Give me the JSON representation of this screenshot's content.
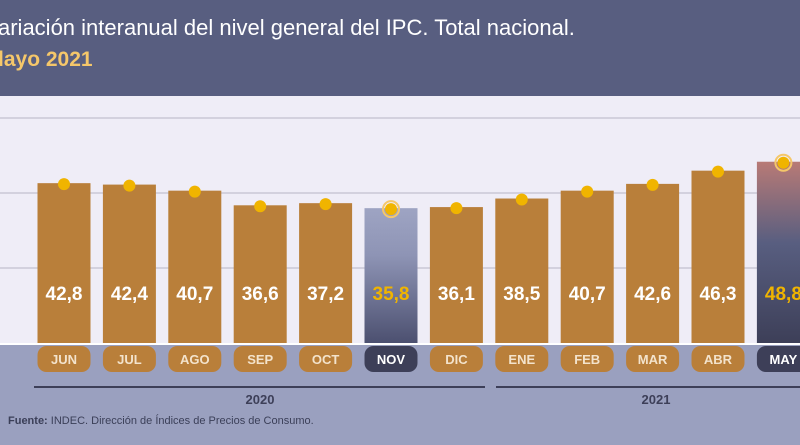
{
  "header": {
    "title": "ariación interanual del nivel general del IPC. Total nacional.",
    "subtitle": "layo 2021"
  },
  "chart_data": {
    "type": "bar",
    "title": "ariación interanual del nivel general del IPC. Total nacional.",
    "subtitle": "layo 2021",
    "categories": [
      "JUN",
      "JUL",
      "AGO",
      "SEP",
      "OCT",
      "NOV",
      "DIC",
      "ENE",
      "FEB",
      "MAR",
      "ABR",
      "MAY"
    ],
    "values": [
      42.8,
      42.4,
      40.7,
      36.6,
      37.2,
      35.8,
      36.1,
      38.5,
      40.7,
      42.6,
      46.3,
      48.8
    ],
    "labels": [
      "42,8",
      "42,4",
      "40,7",
      "36,6",
      "37,2",
      "35,8",
      "36,1",
      "38,5",
      "40,7",
      "42,6",
      "46,3",
      "48,8"
    ],
    "highlighted": [
      "NOV",
      "MAY"
    ],
    "year_groups": [
      {
        "label": "2020",
        "categories": [
          "JUN",
          "JUL",
          "AGO",
          "SEP",
          "OCT",
          "NOV",
          "DIC"
        ]
      },
      {
        "label": "2021",
        "categories": [
          "ENE",
          "FEB",
          "MAR",
          "ABR",
          "MAY"
        ]
      }
    ],
    "grid": true,
    "colors": {
      "bar": "#b97f3a",
      "dot": "#f0b400",
      "highlight_label": "#f0b400",
      "pill_highlight": "#3d3f58"
    }
  },
  "source": {
    "label": "Fuente:",
    "text": " INDEC. Dirección de Índices de Precios de Consumo."
  }
}
